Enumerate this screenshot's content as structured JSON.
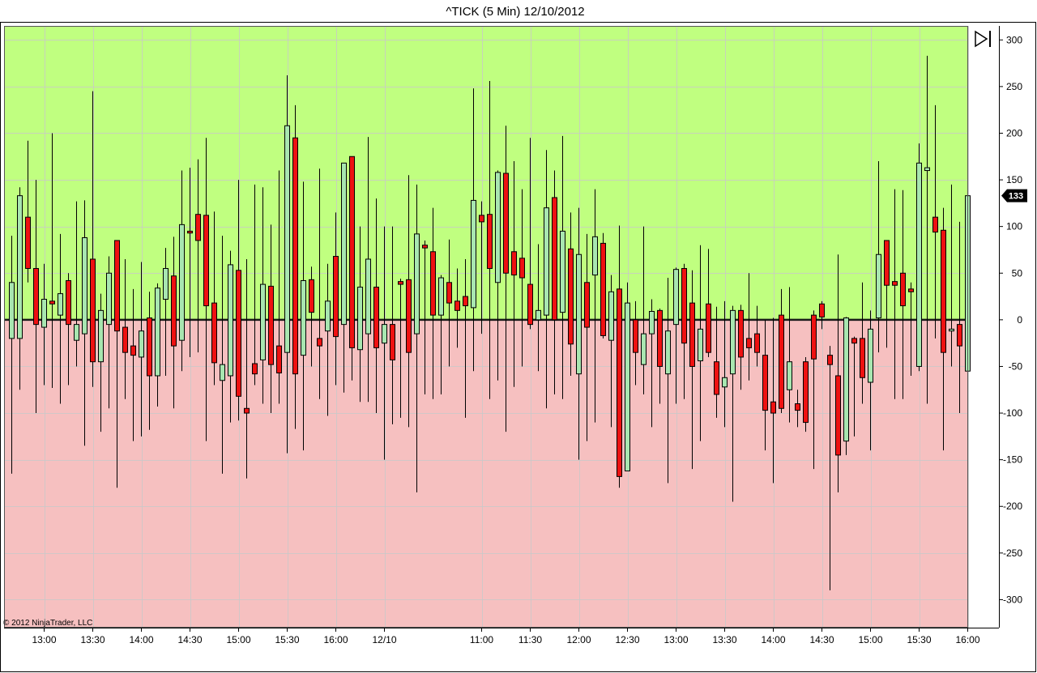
{
  "window": {
    "title": "^TICK (5 Min)  12/10/2012",
    "copyright": "© 2012 NinjaTrader, LLC",
    "last_value_label": "133",
    "scroll_end_icon": "scroll-to-end-icon"
  },
  "colors": {
    "up_zone": "#c0ff80",
    "down_zone": "#f6c0c0",
    "up_candle": "#a8e6b0",
    "down_candle": "#ee1111",
    "zero_line": "#1a1a1a",
    "grid": "#c8c8c8"
  },
  "chart_data": {
    "type": "candlestick",
    "title": "^TICK (5 Min)  12/10/2012",
    "ylim": [
      -330,
      315
    ],
    "y_ticks": [
      300,
      250,
      200,
      150,
      100,
      50,
      0,
      -50,
      -100,
      -150,
      -200,
      -250,
      -300
    ],
    "y_tick_labels": [
      "300",
      "250",
      "200",
      "150",
      "100",
      "50",
      "0",
      "-50",
      "-100",
      "-150",
      "-200",
      "-250",
      "-300"
    ],
    "x_tick_labels": [
      "13:00",
      "13:30",
      "14:00",
      "14:30",
      "15:00",
      "15:30",
      "16:00",
      "12/10",
      "11:00",
      "11:30",
      "12:00",
      "12:30",
      "13:00",
      "13:30",
      "14:00",
      "14:30",
      "15:00",
      "15:30",
      "16:00"
    ],
    "x_tick_bar_index": [
      4,
      10,
      16,
      22,
      28,
      34,
      40,
      46,
      58,
      64,
      70,
      76,
      82,
      88,
      94,
      100,
      106,
      112,
      118
    ],
    "zones": [
      {
        "from": 0,
        "to": 315,
        "meaning": "positive"
      },
      {
        "from": -330,
        "to": 0,
        "meaning": "negative"
      }
    ],
    "last_value": 133,
    "bars": [
      {
        "o": -20,
        "h": 90,
        "l": -165,
        "c": 40
      },
      {
        "o": -20,
        "h": 142,
        "l": -75,
        "c": 133
      },
      {
        "o": 110,
        "h": 192,
        "l": 40,
        "c": 55
      },
      {
        "o": 55,
        "h": 150,
        "l": -100,
        "c": -5
      },
      {
        "o": -8,
        "h": 60,
        "l": -70,
        "c": 22
      },
      {
        "o": 20,
        "h": 200,
        "l": -73,
        "c": 17
      },
      {
        "o": 5,
        "h": 92,
        "l": -90,
        "c": 28
      },
      {
        "o": 42,
        "h": 50,
        "l": -70,
        "c": -5
      },
      {
        "o": -22,
        "h": 127,
        "l": -50,
        "c": -5
      },
      {
        "o": -15,
        "h": 128,
        "l": -135,
        "c": 88
      },
      {
        "o": 65,
        "h": 245,
        "l": -72,
        "c": -45
      },
      {
        "o": -45,
        "h": 28,
        "l": -120,
        "c": 10
      },
      {
        "o": -5,
        "h": 68,
        "l": -95,
        "c": 50
      },
      {
        "o": 85,
        "h": 85,
        "l": -180,
        "c": -12
      },
      {
        "o": -8,
        "h": 65,
        "l": -85,
        "c": -35
      },
      {
        "o": -28,
        "h": 33,
        "l": -130,
        "c": -38
      },
      {
        "o": -40,
        "h": 62,
        "l": -125,
        "c": -12
      },
      {
        "o": 2,
        "h": 30,
        "l": -118,
        "c": -60
      },
      {
        "o": -60,
        "h": 39,
        "l": -93,
        "c": 34
      },
      {
        "o": 22,
        "h": 77,
        "l": -60,
        "c": 55
      },
      {
        "o": 47,
        "h": 89,
        "l": -95,
        "c": -28
      },
      {
        "o": -22,
        "h": 160,
        "l": -55,
        "c": 102
      },
      {
        "o": 95,
        "h": 163,
        "l": -40,
        "c": 93
      },
      {
        "o": 113,
        "h": 172,
        "l": -35,
        "c": 85
      },
      {
        "o": 112,
        "h": 195,
        "l": -130,
        "c": 15
      },
      {
        "o": 18,
        "h": 116,
        "l": -70,
        "c": -46
      },
      {
        "o": -65,
        "h": 90,
        "l": -165,
        "c": -48
      },
      {
        "o": -60,
        "h": 74,
        "l": -110,
        "c": 59
      },
      {
        "o": 53,
        "h": 150,
        "l": -108,
        "c": -82
      },
      {
        "o": -95,
        "h": 65,
        "l": -170,
        "c": -100
      },
      {
        "o": -47,
        "h": 145,
        "l": -70,
        "c": -58
      },
      {
        "o": -43,
        "h": 142,
        "l": -90,
        "c": 38
      },
      {
        "o": 36,
        "h": 102,
        "l": -100,
        "c": -48
      },
      {
        "o": -28,
        "h": 160,
        "l": -90,
        "c": -57
      },
      {
        "o": -35,
        "h": 262,
        "l": -143,
        "c": 208
      },
      {
        "o": 195,
        "h": 230,
        "l": -117,
        "c": -58
      },
      {
        "o": -38,
        "h": 148,
        "l": -140,
        "c": 42
      },
      {
        "o": 43,
        "h": 57,
        "l": -50,
        "c": 8
      },
      {
        "o": -20,
        "h": 162,
        "l": -85,
        "c": -28
      },
      {
        "o": -12,
        "h": 60,
        "l": -103,
        "c": 20
      },
      {
        "o": 68,
        "h": 115,
        "l": -70,
        "c": -18
      },
      {
        "o": -5,
        "h": 168,
        "l": -78,
        "c": 168
      },
      {
        "o": 175,
        "h": 175,
        "l": -65,
        "c": -30
      },
      {
        "o": -32,
        "h": 100,
        "l": -88,
        "c": 35
      },
      {
        "o": -15,
        "h": 196,
        "l": -88,
        "c": 65
      },
      {
        "o": 35,
        "h": 130,
        "l": -100,
        "c": -30
      },
      {
        "o": -25,
        "h": 100,
        "l": -150,
        "c": -5
      },
      {
        "o": -5,
        "h": 100,
        "l": -112,
        "c": -43
      },
      {
        "o": 41,
        "h": 44,
        "l": -105,
        "c": 38
      },
      {
        "o": 43,
        "h": 155,
        "l": -115,
        "c": -35
      },
      {
        "o": -15,
        "h": 145,
        "l": -185,
        "c": 92
      },
      {
        "o": 80,
        "h": 85,
        "l": -80,
        "c": 77
      },
      {
        "o": 73,
        "h": 120,
        "l": -85,
        "c": 5
      },
      {
        "o": 5,
        "h": 48,
        "l": -80,
        "c": 45
      },
      {
        "o": 40,
        "h": 86,
        "l": -50,
        "c": 18
      },
      {
        "o": 20,
        "h": 55,
        "l": -30,
        "c": 10
      },
      {
        "o": 25,
        "h": 65,
        "l": -105,
        "c": 15
      },
      {
        "o": 13,
        "h": 248,
        "l": -55,
        "c": 128
      },
      {
        "o": 112,
        "h": 127,
        "l": -15,
        "c": 105
      },
      {
        "o": 113,
        "h": 256,
        "l": -85,
        "c": 55
      },
      {
        "o": 40,
        "h": 160,
        "l": -65,
        "c": 158
      },
      {
        "o": 157,
        "h": 208,
        "l": -120,
        "c": 50
      },
      {
        "o": 73,
        "h": 170,
        "l": -72,
        "c": 48
      },
      {
        "o": 66,
        "h": 140,
        "l": -50,
        "c": 45
      },
      {
        "o": 38,
        "h": 195,
        "l": -10,
        "c": -5
      },
      {
        "o": 0,
        "h": 81,
        "l": -55,
        "c": 10
      },
      {
        "o": 5,
        "h": 182,
        "l": -95,
        "c": 120
      },
      {
        "o": 131,
        "h": 160,
        "l": -80,
        "c": 0
      },
      {
        "o": 8,
        "h": 197,
        "l": -85,
        "c": 95
      },
      {
        "o": 76,
        "h": 115,
        "l": -60,
        "c": -26
      },
      {
        "o": -58,
        "h": 120,
        "l": -150,
        "c": 70
      },
      {
        "o": 40,
        "h": 92,
        "l": -130,
        "c": -8
      },
      {
        "o": 48,
        "h": 140,
        "l": -110,
        "c": 89
      },
      {
        "o": 82,
        "h": 93,
        "l": -20,
        "c": -17
      },
      {
        "o": -22,
        "h": 48,
        "l": -115,
        "c": 30
      },
      {
        "o": 33,
        "h": 101,
        "l": -180,
        "c": -168
      },
      {
        "o": -162,
        "h": 40,
        "l": -160,
        "c": 18
      },
      {
        "o": 0,
        "h": 20,
        "l": -70,
        "c": -35
      },
      {
        "o": -48,
        "h": 100,
        "l": -80,
        "c": -15
      },
      {
        "o": -15,
        "h": 22,
        "l": -115,
        "c": 9
      },
      {
        "o": 10,
        "h": 12,
        "l": -90,
        "c": -50
      },
      {
        "o": -58,
        "h": 45,
        "l": -175,
        "c": -12
      },
      {
        "o": -5,
        "h": 56,
        "l": -90,
        "c": 54
      },
      {
        "o": 55,
        "h": 60,
        "l": -85,
        "c": -25
      },
      {
        "o": 18,
        "h": 53,
        "l": -160,
        "c": -50
      },
      {
        "o": -44,
        "h": 80,
        "l": -130,
        "c": -10
      },
      {
        "o": 17,
        "h": 76,
        "l": -40,
        "c": -35
      },
      {
        "o": -45,
        "h": 14,
        "l": -105,
        "c": -80
      },
      {
        "o": -72,
        "h": 20,
        "l": -115,
        "c": -62
      },
      {
        "o": -58,
        "h": 15,
        "l": -195,
        "c": 10
      },
      {
        "o": 10,
        "h": 16,
        "l": -75,
        "c": -40
      },
      {
        "o": -20,
        "h": 50,
        "l": -65,
        "c": -30
      },
      {
        "o": -15,
        "h": 15,
        "l": -50,
        "c": -35
      },
      {
        "o": -38,
        "h": 0,
        "l": -140,
        "c": -97
      },
      {
        "o": -88,
        "h": 2,
        "l": -175,
        "c": -100
      },
      {
        "o": 5,
        "h": 33,
        "l": -100,
        "c": -95
      },
      {
        "o": -75,
        "h": 35,
        "l": -110,
        "c": -45
      },
      {
        "o": -90,
        "h": -75,
        "l": -115,
        "c": -97
      },
      {
        "o": -45,
        "h": -40,
        "l": -120,
        "c": -110
      },
      {
        "o": 5,
        "h": 10,
        "l": -160,
        "c": -42
      },
      {
        "o": 17,
        "h": 20,
        "l": -10,
        "c": 3
      },
      {
        "o": -38,
        "h": -28,
        "l": -290,
        "c": -48
      },
      {
        "o": -60,
        "h": 70,
        "l": -185,
        "c": -145
      },
      {
        "o": -130,
        "h": 3,
        "l": -145,
        "c": 2
      },
      {
        "o": -20,
        "h": -18,
        "l": -125,
        "c": -25
      },
      {
        "o": -20,
        "h": 40,
        "l": -90,
        "c": -62
      },
      {
        "o": -67,
        "h": 10,
        "l": -140,
        "c": -10
      },
      {
        "o": 2,
        "h": 170,
        "l": -35,
        "c": 70
      },
      {
        "o": 85,
        "h": 85,
        "l": -30,
        "c": 37
      },
      {
        "o": 41,
        "h": 140,
        "l": -85,
        "c": 37
      },
      {
        "o": 50,
        "h": 139,
        "l": -85,
        "c": 15
      },
      {
        "o": 33,
        "h": 40,
        "l": -60,
        "c": 30
      },
      {
        "o": -50,
        "h": 189,
        "l": -55,
        "c": 168
      },
      {
        "o": 160,
        "h": 283,
        "l": -90,
        "c": 163
      },
      {
        "o": 110,
        "h": 230,
        "l": -20,
        "c": 94
      },
      {
        "o": 96,
        "h": 120,
        "l": -140,
        "c": -35
      },
      {
        "o": -12,
        "h": 145,
        "l": -50,
        "c": -10
      },
      {
        "o": -5,
        "h": 105,
        "l": -100,
        "c": -28
      },
      {
        "o": -55,
        "h": 132,
        "l": -110,
        "c": 133
      }
    ]
  }
}
